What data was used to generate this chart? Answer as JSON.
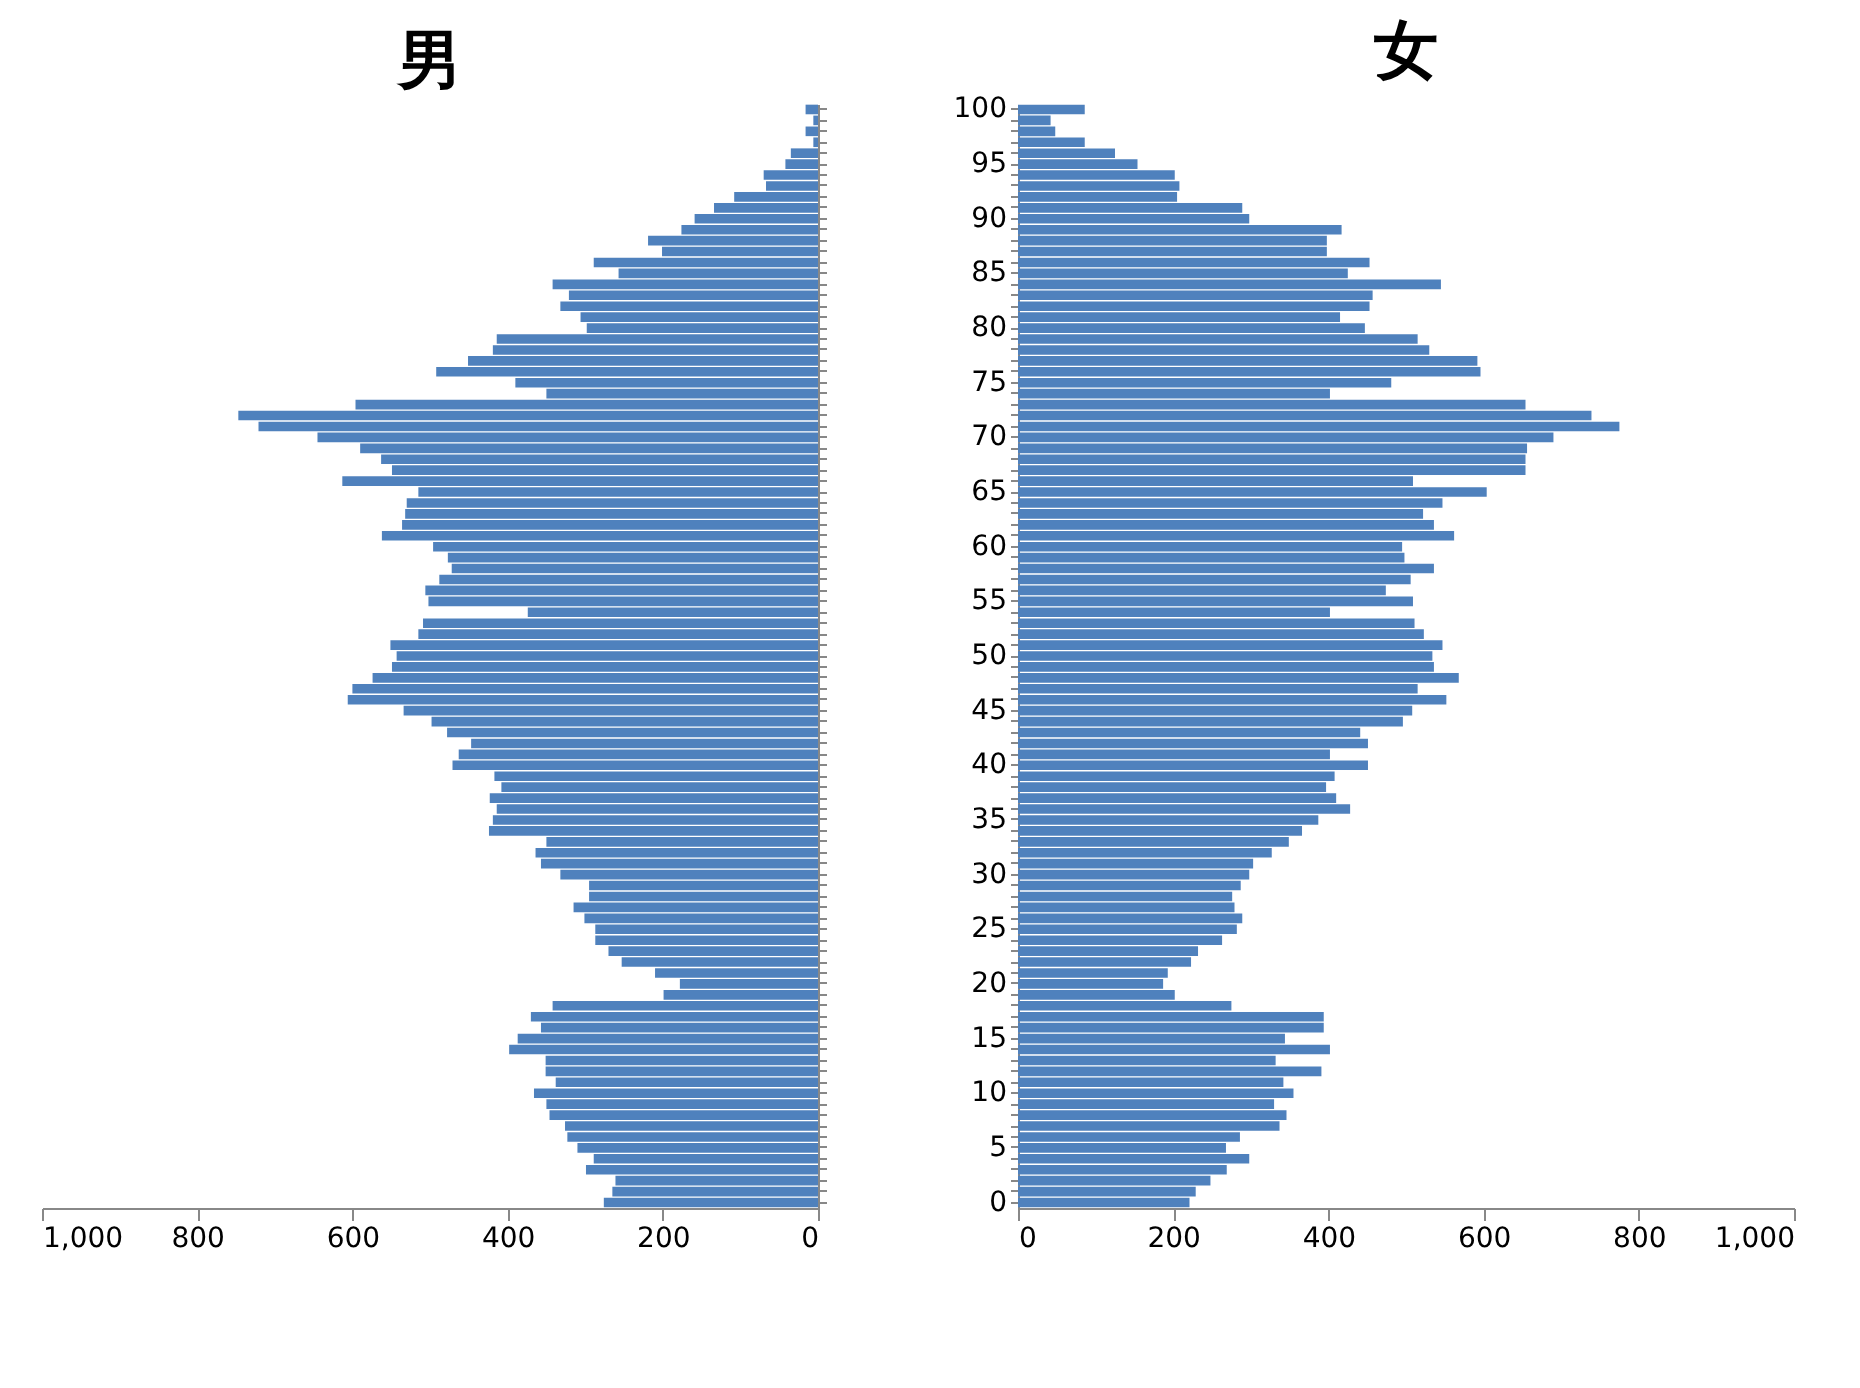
{
  "chart_data": [
    {
      "type": "bar",
      "orientation": "horizontal",
      "title": "男",
      "color": "#4f81bd",
      "tick_labels": "x",
      "categories": [
        "100",
        null,
        null,
        null,
        null,
        "95",
        null,
        null,
        null,
        null,
        "90",
        null,
        null,
        null,
        null,
        "85",
        null,
        null,
        null,
        null,
        "80",
        null,
        null,
        null,
        null,
        "75",
        null,
        null,
        null,
        null,
        "70",
        null,
        null,
        null,
        null,
        "65",
        null,
        null,
        null,
        null,
        "60",
        null,
        null,
        null,
        null,
        "55",
        null,
        null,
        null,
        null,
        "50",
        null,
        null,
        null,
        null,
        "45",
        null,
        null,
        null,
        null,
        "40",
        null,
        null,
        null,
        null,
        "35",
        null,
        null,
        null,
        null,
        "30",
        null,
        null,
        null,
        null,
        "25",
        null,
        null,
        null,
        null,
        "20",
        null,
        null,
        null,
        null,
        "15",
        null,
        null,
        null,
        null,
        "10",
        null,
        null,
        null,
        null,
        "5",
        null,
        null,
        null,
        null,
        "0"
      ],
      "values": [
        16,
        6,
        16,
        6,
        35,
        42,
        70,
        67,
        108,
        134,
        159,
        176,
        219,
        201,
        289,
        257,
        342,
        321,
        332,
        306,
        298,
        414,
        419,
        451,
        492,
        390,
        350,
        596,
        747,
        721,
        645,
        590,
        563,
        549,
        613,
        515,
        530,
        532,
        536,
        562,
        496,
        477,
        472,
        488,
        506,
        502,
        374,
        509,
        515,
        551,
        543,
        549,
        574,
        600,
        606,
        534,
        498,
        478,
        447,
        463,
        471,
        417,
        408,
        423,
        414,
        419,
        424,
        350,
        364,
        357,
        332,
        295,
        295,
        315,
        301,
        287,
        287,
        270,
        253,
        210,
        178,
        199,
        342,
        370,
        357,
        387,
        398,
        351,
        351,
        338,
        366,
        350,
        346,
        326,
        323,
        310,
        289,
        299,
        261,
        265,
        276
      ],
      "xlim": [
        1000,
        0
      ],
      "xticks": [
        {
          "value": 1000,
          "label": "1,000"
        },
        800,
        600,
        400,
        200,
        0
      ]
    },
    {
      "type": "bar",
      "orientation": "horizontal",
      "title": "女",
      "color": "#4f81bd",
      "categories": [
        "100",
        null,
        null,
        null,
        null,
        "95",
        null,
        null,
        null,
        null,
        "90",
        null,
        null,
        null,
        null,
        "85",
        null,
        null,
        null,
        null,
        "80",
        null,
        null,
        null,
        null,
        "75",
        null,
        null,
        null,
        null,
        "70",
        null,
        null,
        null,
        null,
        "65",
        null,
        null,
        null,
        null,
        "60",
        null,
        null,
        null,
        null,
        "55",
        null,
        null,
        null,
        null,
        "50",
        null,
        null,
        null,
        null,
        "45",
        null,
        null,
        null,
        null,
        "40",
        null,
        null,
        null,
        null,
        "35",
        null,
        null,
        null,
        null,
        "30",
        null,
        null,
        null,
        null,
        "25",
        null,
        null,
        null,
        null,
        "20",
        null,
        null,
        null,
        null,
        "15",
        null,
        null,
        null,
        null,
        "10",
        null,
        null,
        null,
        null,
        "5",
        null,
        null,
        null,
        null,
        "0"
      ],
      "values": [
        86,
        42,
        48,
        86,
        125,
        154,
        202,
        208,
        205,
        289,
        298,
        417,
        398,
        398,
        453,
        425,
        545,
        457,
        453,
        415,
        447,
        515,
        530,
        592,
        596,
        481,
        402,
        654,
        739,
        775,
        690,
        656,
        654,
        654,
        509,
        604,
        547,
        522,
        536,
        562,
        495,
        498,
        536,
        506,
        474,
        509,
        402,
        511,
        523,
        547,
        534,
        536,
        568,
        515,
        552,
        508,
        496,
        441,
        451,
        402,
        451,
        408,
        397,
        410,
        428,
        387,
        366,
        349,
        327,
        303,
        298,
        287,
        276,
        279,
        289,
        282,
        263,
        232,
        223,
        193,
        187,
        202,
        275,
        394,
        394,
        344,
        402,
        332,
        391,
        342,
        355,
        330,
        346,
        337,
        286,
        268,
        298,
        269,
        248,
        229,
        221
      ],
      "xlim": [
        0,
        1000
      ],
      "xticks": [
        0,
        200,
        400,
        600,
        800,
        {
          "value": 1000,
          "label": "1,000"
        }
      ]
    }
  ]
}
